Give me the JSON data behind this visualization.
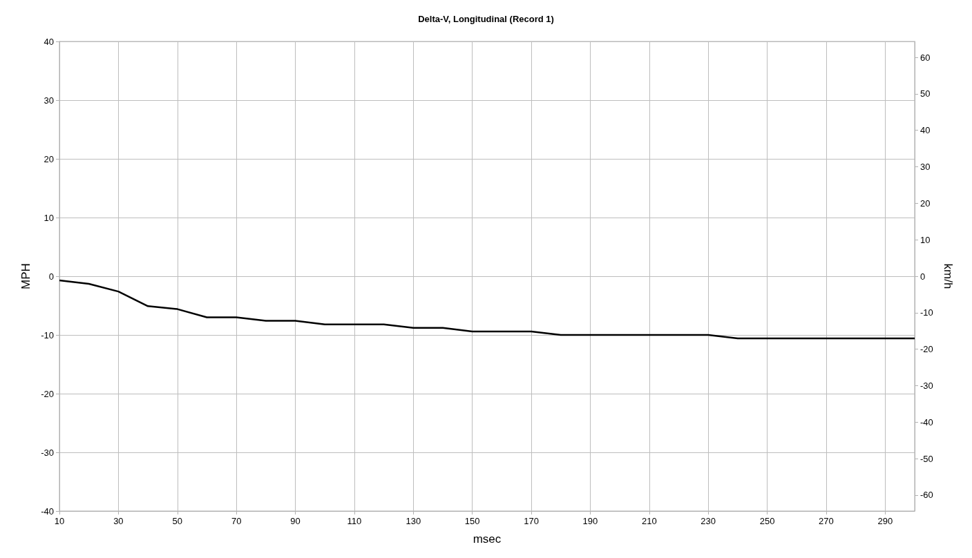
{
  "chart_data": {
    "type": "line",
    "title": "Delta-V, Longitudinal (Record 1)",
    "xlabel": "msec",
    "ylabel": "MPH",
    "y2label": "km/h",
    "x": [
      10,
      20,
      30,
      40,
      50,
      60,
      70,
      80,
      90,
      100,
      110,
      120,
      130,
      140,
      150,
      160,
      170,
      180,
      190,
      200,
      210,
      220,
      230,
      240,
      250,
      260,
      270,
      280,
      290,
      300
    ],
    "series": [
      {
        "color": "#000000",
        "values": [
          -0.7,
          -1.3,
          -2.6,
          -5.1,
          -5.6,
          -7.0,
          -7.0,
          -7.6,
          -7.6,
          -8.2,
          -8.2,
          -8.2,
          -8.8,
          -8.8,
          -9.4,
          -9.4,
          -9.4,
          -10.0,
          -10.0,
          -10.0,
          -10.0,
          -10.0,
          -10.0,
          -10.6,
          -10.6,
          -10.6,
          -10.6,
          -10.6,
          -10.6,
          -10.6
        ]
      }
    ],
    "xlim": [
      10,
      300
    ],
    "xticks": [
      10,
      30,
      50,
      70,
      90,
      110,
      130,
      150,
      170,
      190,
      210,
      230,
      250,
      270,
      290
    ],
    "ylim": [
      -40,
      40
    ],
    "yticks": [
      -40,
      -30,
      -20,
      -10,
      0,
      10,
      20,
      30,
      40
    ],
    "y2lim": [
      -64.37,
      64.37
    ],
    "y2ticks": [
      -60,
      -50,
      -40,
      -30,
      -20,
      -10,
      0,
      10,
      20,
      30,
      40,
      50,
      60
    ],
    "grid": true,
    "marker": "none",
    "line_style": "solid"
  }
}
